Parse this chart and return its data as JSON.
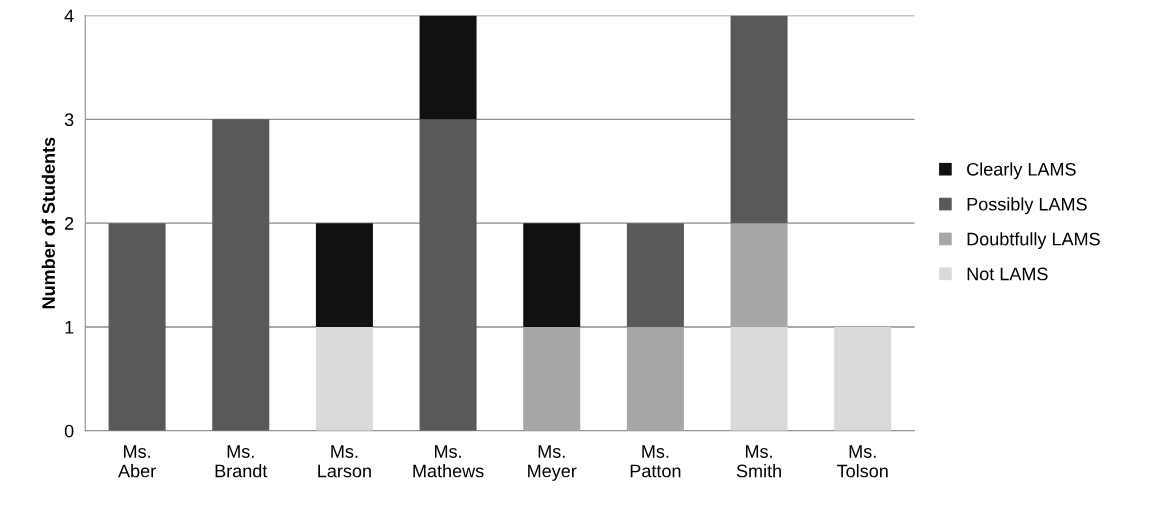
{
  "chart_data": {
    "type": "bar",
    "stacked": true,
    "ylabel": "Number of Students",
    "categories": [
      "Ms.\nAber",
      "Ms.\nBrandt",
      "Ms.\nLarson",
      "Ms.\nMathews",
      "Ms.\nMeyer",
      "Ms.\nPatton",
      "Ms.\nSmith",
      "Ms.\nTolson"
    ],
    "series": [
      {
        "name": "Not LAMS",
        "color": "#d9d9d9",
        "values": [
          0,
          0,
          1,
          0,
          0,
          0,
          1,
          1
        ]
      },
      {
        "name": "Doubtfully LAMS",
        "color": "#a6a6a6",
        "values": [
          0,
          0,
          0,
          0,
          1,
          1,
          1,
          0
        ]
      },
      {
        "name": "Possibly LAMS",
        "color": "#595959",
        "values": [
          2,
          3,
          0,
          3,
          0,
          1,
          2,
          0
        ]
      },
      {
        "name": "Clearly LAMS",
        "color": "#111111",
        "values": [
          0,
          0,
          1,
          1,
          1,
          0,
          0,
          0
        ]
      }
    ],
    "ylim": [
      0,
      4
    ],
    "yticks": [
      0,
      1,
      2,
      3,
      4
    ],
    "grid": "y",
    "legend": "right"
  }
}
